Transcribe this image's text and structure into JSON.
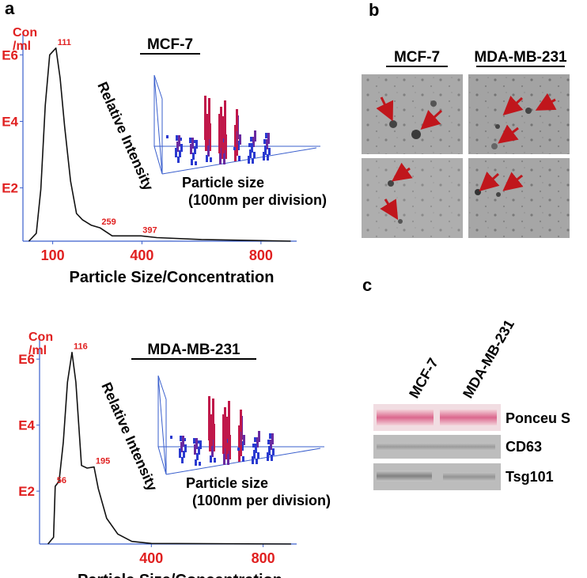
{
  "panel_labels": {
    "a": "a",
    "b": "b",
    "c": "c"
  },
  "chart_data": [
    {
      "type": "line",
      "title": "MCF-7",
      "ylabel": [
        "Con",
        "/ml"
      ],
      "xlabel": "Particle Size/Concentration",
      "log_y": true,
      "axis_color": "#3a5fcd",
      "label_color": "#e02020",
      "xlim": [
        0,
        920
      ],
      "ylim": [
        2.5,
        5000000
      ],
      "xticks": [
        100,
        400,
        800
      ],
      "yticks": [
        {
          "value": 100,
          "label": "E2"
        },
        {
          "value": 10000,
          "label": "E4"
        },
        {
          "value": 1000000,
          "label": "E6"
        }
      ],
      "x": [
        20,
        45,
        60,
        75,
        90,
        111,
        125,
        140,
        160,
        180,
        200,
        230,
        259,
        300,
        397,
        450,
        600,
        800,
        900
      ],
      "series": [
        {
          "color": "#111111",
          "values": [
            2.5,
            4.3,
            90,
            30000,
            1000000,
            1600000,
            200000,
            7000,
            160,
            17,
            11,
            7.5,
            6.3,
            3.6,
            3.6,
            3.2,
            2.8,
            2.6,
            2.5
          ]
        }
      ],
      "peaks": [
        111,
        259,
        397
      ],
      "inset": {
        "z_label": "Relative Intensity",
        "x_label": [
          "Particle size",
          "(100nm per division)"
        ]
      }
    },
    {
      "type": "line",
      "title": "MDA-MB-231",
      "ylabel": [
        "Con",
        "/ml"
      ],
      "xlabel": "Particle Size/Concentration",
      "log_y": true,
      "axis_color": "#3a5fcd",
      "label_color": "#e02020",
      "xlim": [
        0,
        920
      ],
      "ylim": [
        2.5,
        5000000
      ],
      "xticks": [
        400,
        800
      ],
      "yticks": [
        {
          "value": 100,
          "label": "E2"
        },
        {
          "value": 10000,
          "label": "E4"
        },
        {
          "value": 1000000,
          "label": "E6"
        }
      ],
      "x": [
        30,
        50,
        56,
        70,
        85,
        100,
        116,
        130,
        150,
        170,
        195,
        210,
        240,
        280,
        330,
        400,
        900
      ],
      "series": [
        {
          "color": "#111111",
          "values": [
            2.5,
            4,
            140,
            200,
            3000,
            200000,
            1600000,
            200000,
            600,
            500,
            540,
            120,
            15,
            5,
            3,
            2.6,
            2.5
          ]
        }
      ],
      "peaks": [
        56,
        116,
        195
      ],
      "inset": {
        "z_label": "Relative Intensity",
        "x_label": [
          "Particle size",
          "(100nm per division)"
        ]
      }
    }
  ],
  "tem": {
    "columns": [
      "MCF-7",
      "MDA-MB-231"
    ]
  },
  "blot": {
    "columns": [
      "MCF-7",
      "MDA-MB-231"
    ],
    "rows": [
      "Ponceu S",
      "CD63",
      "Tsg101"
    ]
  }
}
